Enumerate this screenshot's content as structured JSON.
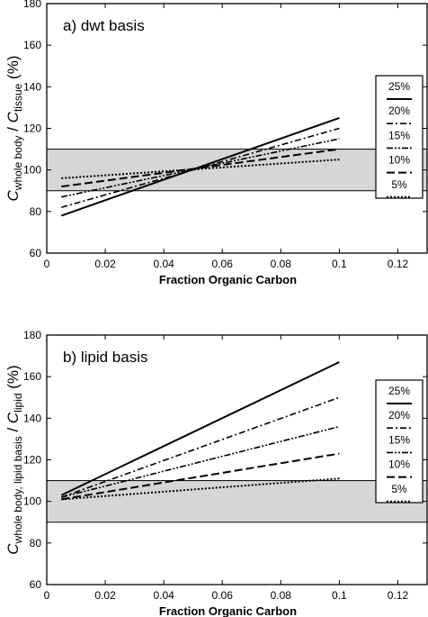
{
  "chart_data": [
    {
      "type": "line",
      "panel_label": "a) dwt basis",
      "xlabel": "Fraction Organic Carbon",
      "ylabel": {
        "prefix": "C",
        "num_sub": "whole body",
        "sep": " / ",
        "prefix2": "C",
        "den_sub": "tissue",
        "unit": " (%)"
      },
      "xlim": [
        0,
        0.13
      ],
      "ylim": [
        60,
        180
      ],
      "xticks": [
        0,
        0.02,
        0.04,
        0.06,
        0.08,
        0.1,
        0.12
      ],
      "xtick_labels": [
        "0",
        "0.02",
        "0.04",
        "0.06",
        "0.08",
        "0.1",
        "0.12"
      ],
      "yticks": [
        60,
        80,
        100,
        120,
        140,
        160,
        180
      ],
      "band": [
        90,
        110
      ],
      "legend_position": "right",
      "series": [
        {
          "name": "25%",
          "style": "solid",
          "x": [
            0.005,
            0.1
          ],
          "y": [
            78,
            125
          ]
        },
        {
          "name": "20%",
          "style": "dashdot",
          "x": [
            0.005,
            0.1
          ],
          "y": [
            82,
            120
          ]
        },
        {
          "name": "15%",
          "style": "dashdotdot",
          "x": [
            0.005,
            0.1
          ],
          "y": [
            87,
            115
          ]
        },
        {
          "name": "10%",
          "style": "dashed",
          "x": [
            0.005,
            0.1
          ],
          "y": [
            92,
            110
          ]
        },
        {
          "name": "5%",
          "style": "dotted",
          "x": [
            0.005,
            0.1
          ],
          "y": [
            96,
            105
          ]
        }
      ]
    },
    {
      "type": "line",
      "panel_label": "b) lipid basis",
      "xlabel": "Fraction Organic Carbon",
      "ylabel": {
        "prefix": "C",
        "num_sub": "whole body, lipid basis",
        "sep": " / ",
        "prefix2": "C",
        "den_sub": "lipid",
        "unit": " (%)"
      },
      "xlim": [
        0,
        0.13
      ],
      "ylim": [
        60,
        180
      ],
      "xticks": [
        0,
        0.02,
        0.04,
        0.06,
        0.08,
        0.1,
        0.12
      ],
      "xtick_labels": [
        "0",
        "0.02",
        "0.04",
        "0.06",
        "0.08",
        "0.1",
        "0.12"
      ],
      "yticks": [
        60,
        80,
        100,
        120,
        140,
        160,
        180
      ],
      "band": [
        90,
        110
      ],
      "legend_position": "right",
      "series": [
        {
          "name": "25%",
          "style": "solid",
          "x": [
            0.005,
            0.1
          ],
          "y": [
            103,
            167
          ]
        },
        {
          "name": "20%",
          "style": "dashdot",
          "x": [
            0.005,
            0.1
          ],
          "y": [
            102,
            150
          ]
        },
        {
          "name": "15%",
          "style": "dashdotdot",
          "x": [
            0.005,
            0.1
          ],
          "y": [
            102,
            136
          ]
        },
        {
          "name": "10%",
          "style": "dashed",
          "x": [
            0.005,
            0.1
          ],
          "y": [
            101,
            123
          ]
        },
        {
          "name": "5%",
          "style": "dotted",
          "x": [
            0.005,
            0.1
          ],
          "y": [
            101,
            111
          ]
        }
      ]
    }
  ]
}
